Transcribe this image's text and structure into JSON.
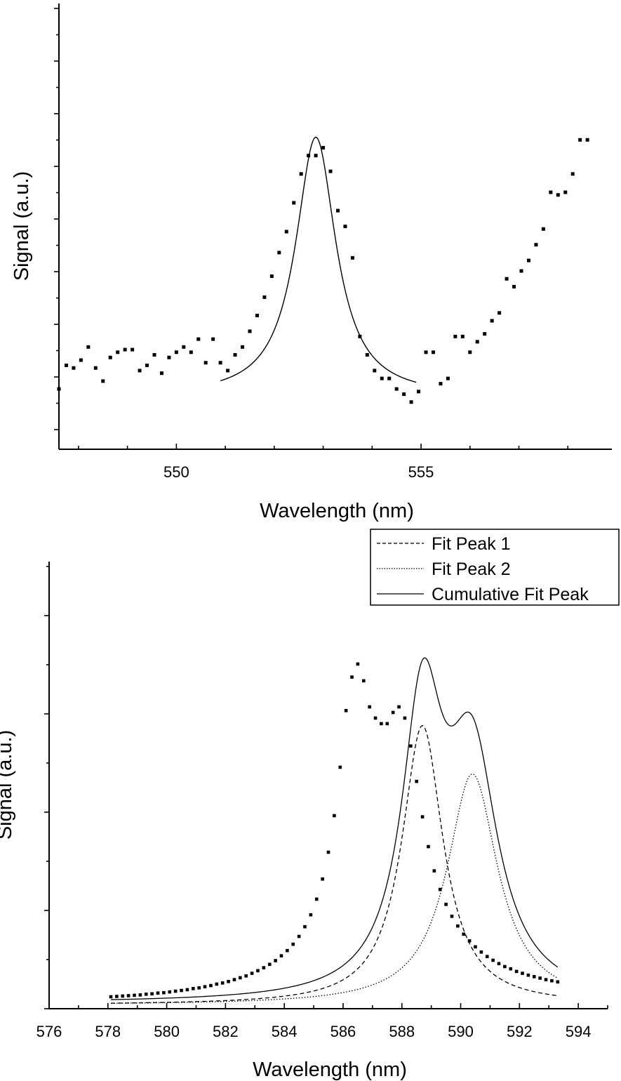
{
  "chart_data": [
    {
      "type": "scatter",
      "title": "",
      "xlabel": "Wavelength (nm)",
      "ylabel": "Signal (a.u.)",
      "xlim": [
        547.6,
        558.9
      ],
      "ylim": [
        0,
        17
      ],
      "x_ticks_labeled": [
        550,
        555
      ],
      "y_tick_labels_shown": false,
      "grid": false,
      "series": [
        {
          "kind": "points",
          "x": [
            547.6,
            547.75,
            547.9,
            548.05,
            548.2,
            548.35,
            548.5,
            548.65,
            548.8,
            548.95,
            549.1,
            549.25,
            549.4,
            549.55,
            549.7,
            549.85,
            550.0,
            550.15,
            550.3,
            550.45,
            550.6,
            550.75,
            550.9,
            551.05,
            551.2,
            551.35,
            551.5,
            551.65,
            551.8,
            551.95,
            552.1,
            552.25,
            552.4,
            552.55,
            552.7,
            552.85,
            553.0,
            553.15,
            553.3,
            553.45,
            553.6,
            553.75,
            553.9,
            554.05,
            554.2,
            554.35,
            554.5,
            554.65,
            554.8,
            554.95,
            555.1,
            555.25,
            555.4,
            555.55,
            555.7,
            555.85,
            556.0,
            556.15,
            556.3,
            556.45,
            556.6,
            556.75,
            556.9,
            557.05,
            557.2,
            557.35,
            557.5,
            557.65,
            557.8,
            557.95,
            558.1,
            558.25,
            558.4
          ],
          "y": [
            2.3,
            3.2,
            3.1,
            3.4,
            3.9,
            3.1,
            2.6,
            3.5,
            3.7,
            3.8,
            3.8,
            3.0,
            3.2,
            3.6,
            2.9,
            3.5,
            3.7,
            3.9,
            3.7,
            4.2,
            3.3,
            4.2,
            3.3,
            3.0,
            3.6,
            3.9,
            4.5,
            5.1,
            5.8,
            6.6,
            7.5,
            8.3,
            9.4,
            10.5,
            11.2,
            11.2,
            11.5,
            10.6,
            9.1,
            8.5,
            7.3,
            4.3,
            3.6,
            3.0,
            2.7,
            2.7,
            2.3,
            2.1,
            1.8,
            2.2,
            3.7,
            3.7,
            2.5,
            2.7,
            4.3,
            4.3,
            3.7,
            4.1,
            4.4,
            4.9,
            5.2,
            6.5,
            6.2,
            6.8,
            7.2,
            7.8,
            8.4,
            9.8,
            9.7,
            9.8,
            10.5,
            11.8,
            11.8
          ]
        },
        {
          "kind": "fit",
          "center": 552.85,
          "hwhm": 0.5,
          "amplitude": 9.9,
          "baseline": 2.0,
          "x_range": [
            550.9,
            554.9
          ]
        }
      ]
    },
    {
      "type": "line",
      "title": "",
      "xlabel": "Wavelength (nm)",
      "ylabel": "Signal (a.u.)",
      "xlim": [
        576,
        595
      ],
      "ylim": [
        0,
        12
      ],
      "x_ticks_labeled": [
        576,
        578,
        580,
        582,
        584,
        586,
        588,
        590,
        592,
        594
      ],
      "y_tick_labels_shown": false,
      "grid": false,
      "legend": {
        "position": "top-right",
        "entries": [
          {
            "label": "Fit Peak 1",
            "style": "dashed"
          },
          {
            "label": "Fit Peak 2",
            "style": "dotted"
          },
          {
            "label": "Cumulative Fit Peak",
            "style": "solid"
          }
        ]
      },
      "series": [
        {
          "kind": "points",
          "x": [
            578.1,
            578.3,
            578.5,
            578.7,
            578.9,
            579.1,
            579.3,
            579.5,
            579.7,
            579.9,
            580.1,
            580.3,
            580.5,
            580.7,
            580.9,
            581.1,
            581.3,
            581.5,
            581.7,
            581.9,
            582.1,
            582.3,
            582.5,
            582.7,
            582.9,
            583.1,
            583.3,
            583.5,
            583.7,
            583.9,
            584.1,
            584.3,
            584.5,
            584.7,
            584.9,
            585.1,
            585.3,
            585.5,
            585.7,
            585.9,
            586.1,
            586.3,
            586.5,
            586.7,
            586.9,
            587.1,
            587.3,
            587.5,
            587.7,
            587.9,
            588.1,
            588.3,
            588.5,
            588.7,
            588.9,
            589.1,
            589.3,
            589.5,
            589.7,
            589.9,
            590.1,
            590.3,
            590.5,
            590.7,
            590.9,
            591.1,
            591.3,
            591.5,
            591.7,
            591.9,
            592.1,
            592.3,
            592.5,
            592.7,
            592.9,
            593.1,
            593.3
          ],
          "y": [
            0.32,
            0.33,
            0.34,
            0.35,
            0.36,
            0.37,
            0.39,
            0.4,
            0.42,
            0.43,
            0.45,
            0.47,
            0.49,
            0.51,
            0.54,
            0.56,
            0.59,
            0.62,
            0.66,
            0.69,
            0.73,
            0.78,
            0.83,
            0.88,
            0.95,
            1.02,
            1.1,
            1.19,
            1.29,
            1.42,
            1.56,
            1.73,
            1.94,
            2.2,
            2.52,
            2.94,
            3.48,
            4.2,
            5.18,
            6.48,
            8.0,
            8.9,
            9.25,
            8.8,
            8.1,
            7.8,
            7.65,
            7.65,
            7.95,
            8.1,
            7.8,
            7.05,
            6.1,
            5.15,
            4.35,
            3.7,
            3.2,
            2.8,
            2.48,
            2.22,
            2.0,
            1.82,
            1.66,
            1.52,
            1.4,
            1.3,
            1.21,
            1.13,
            1.07,
            1.0,
            0.95,
            0.9,
            0.86,
            0.82,
            0.78,
            0.75,
            0.72
          ]
        },
        {
          "kind": "fit",
          "name": "Fit Peak 1",
          "center": 588.7,
          "hwhm": 0.85,
          "amplitude": 7.5,
          "baseline": 0.1,
          "x_range": [
            578.1,
            593.3
          ]
        },
        {
          "kind": "fit",
          "name": "Fit Peak 2",
          "center": 590.4,
          "hwhm": 1.05,
          "amplitude": 6.2,
          "baseline": 0.1,
          "x_range": [
            578.1,
            593.3
          ]
        },
        {
          "kind": "fit",
          "name": "Cumulative Fit Peak",
          "combine": [
            "Fit Peak 1",
            "Fit Peak 2"
          ],
          "x_range": [
            578.1,
            593.3
          ]
        }
      ]
    }
  ]
}
